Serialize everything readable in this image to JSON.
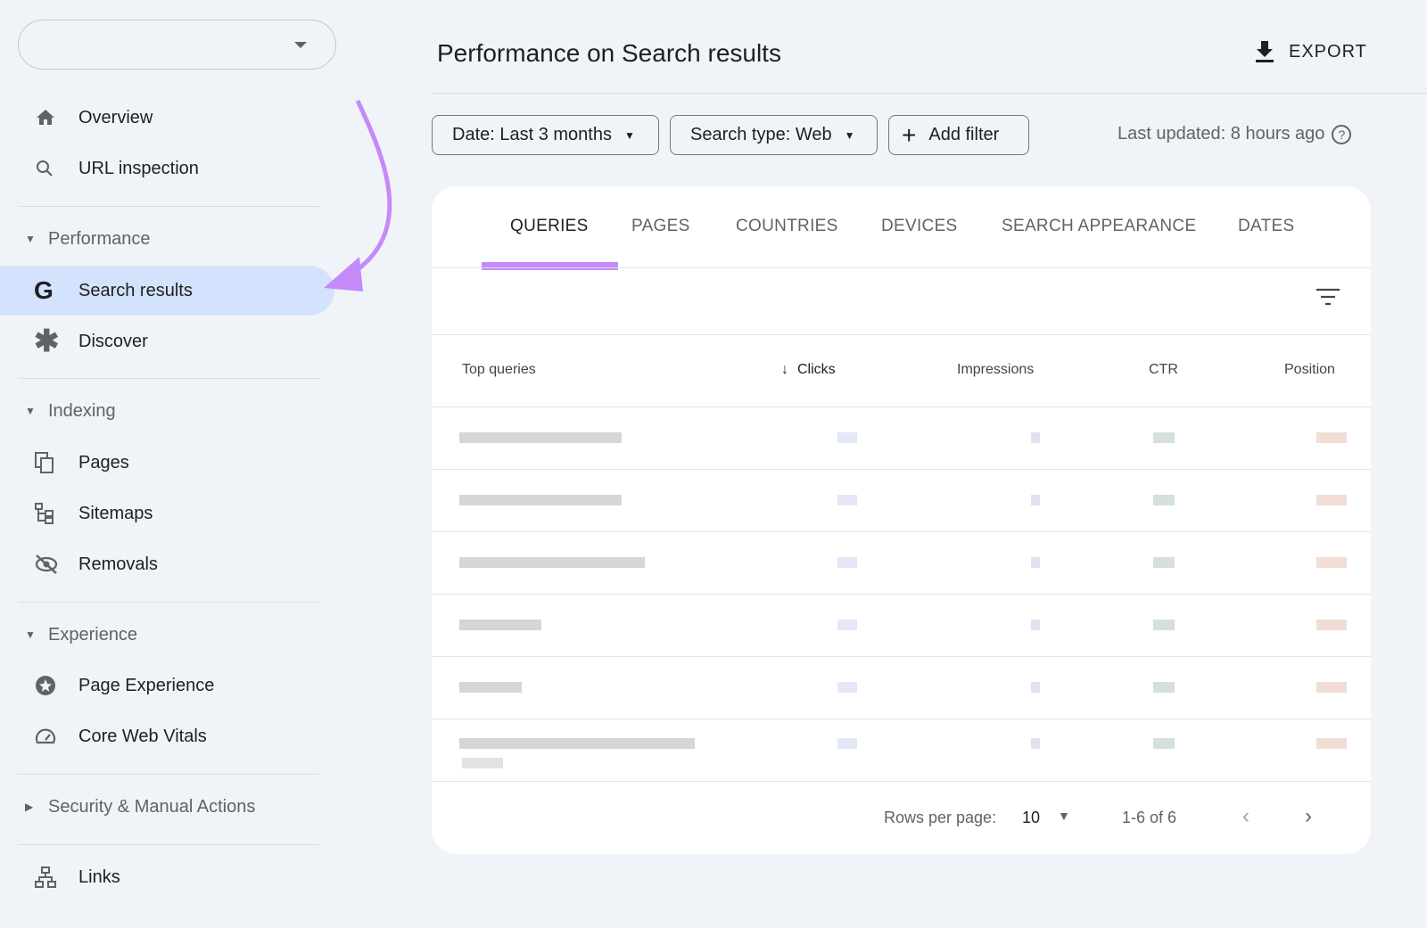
{
  "sidebar": {
    "property_selector": {
      "value": ""
    },
    "top_items": [
      {
        "label": "Overview",
        "icon": "home-icon"
      },
      {
        "label": "URL inspection",
        "icon": "search-icon"
      }
    ],
    "sections": [
      {
        "label": "Performance",
        "expanded": true,
        "items": [
          {
            "label": "Search results",
            "icon": "google-g-icon",
            "active": true
          },
          {
            "label": "Discover",
            "icon": "asterisk-icon"
          }
        ]
      },
      {
        "label": "Indexing",
        "expanded": true,
        "items": [
          {
            "label": "Pages",
            "icon": "pages-icon"
          },
          {
            "label": "Sitemaps",
            "icon": "sitemap-icon"
          },
          {
            "label": "Removals",
            "icon": "eye-off-icon"
          }
        ]
      },
      {
        "label": "Experience",
        "expanded": true,
        "items": [
          {
            "label": "Page Experience",
            "icon": "star-circle-icon"
          },
          {
            "label": "Core Web Vitals",
            "icon": "gauge-icon"
          }
        ]
      },
      {
        "label": "Security & Manual Actions",
        "expanded": false,
        "items": []
      }
    ],
    "bottom_items": [
      {
        "label": "Links",
        "icon": "links-icon"
      }
    ]
  },
  "header": {
    "title": "Performance on Search results",
    "export_label": "EXPORT"
  },
  "filters": {
    "date": "Date: Last 3 months",
    "search_type": "Search type: Web",
    "add_filter": "Add filter",
    "last_updated": "Last updated: 8 hours ago"
  },
  "tabs": [
    {
      "label": "QUERIES",
      "selected": true
    },
    {
      "label": "PAGES"
    },
    {
      "label": "COUNTRIES"
    },
    {
      "label": "DEVICES"
    },
    {
      "label": "SEARCH APPEARANCE"
    },
    {
      "label": "DATES"
    }
  ],
  "table": {
    "columns": [
      "Top queries",
      "Clicks",
      "Impressions",
      "CTR",
      "Position"
    ],
    "sort_column": "Clicks",
    "sort_direction": "descending",
    "rows_redacted": 6
  },
  "pagination": {
    "rows_per_page_label": "Rows per page:",
    "rows_per_page": "10",
    "range": "1-6 of 6"
  },
  "colors": {
    "accent": "#c58af9",
    "active_nav": "#d3e3fd",
    "background": "#f0f4f9"
  }
}
